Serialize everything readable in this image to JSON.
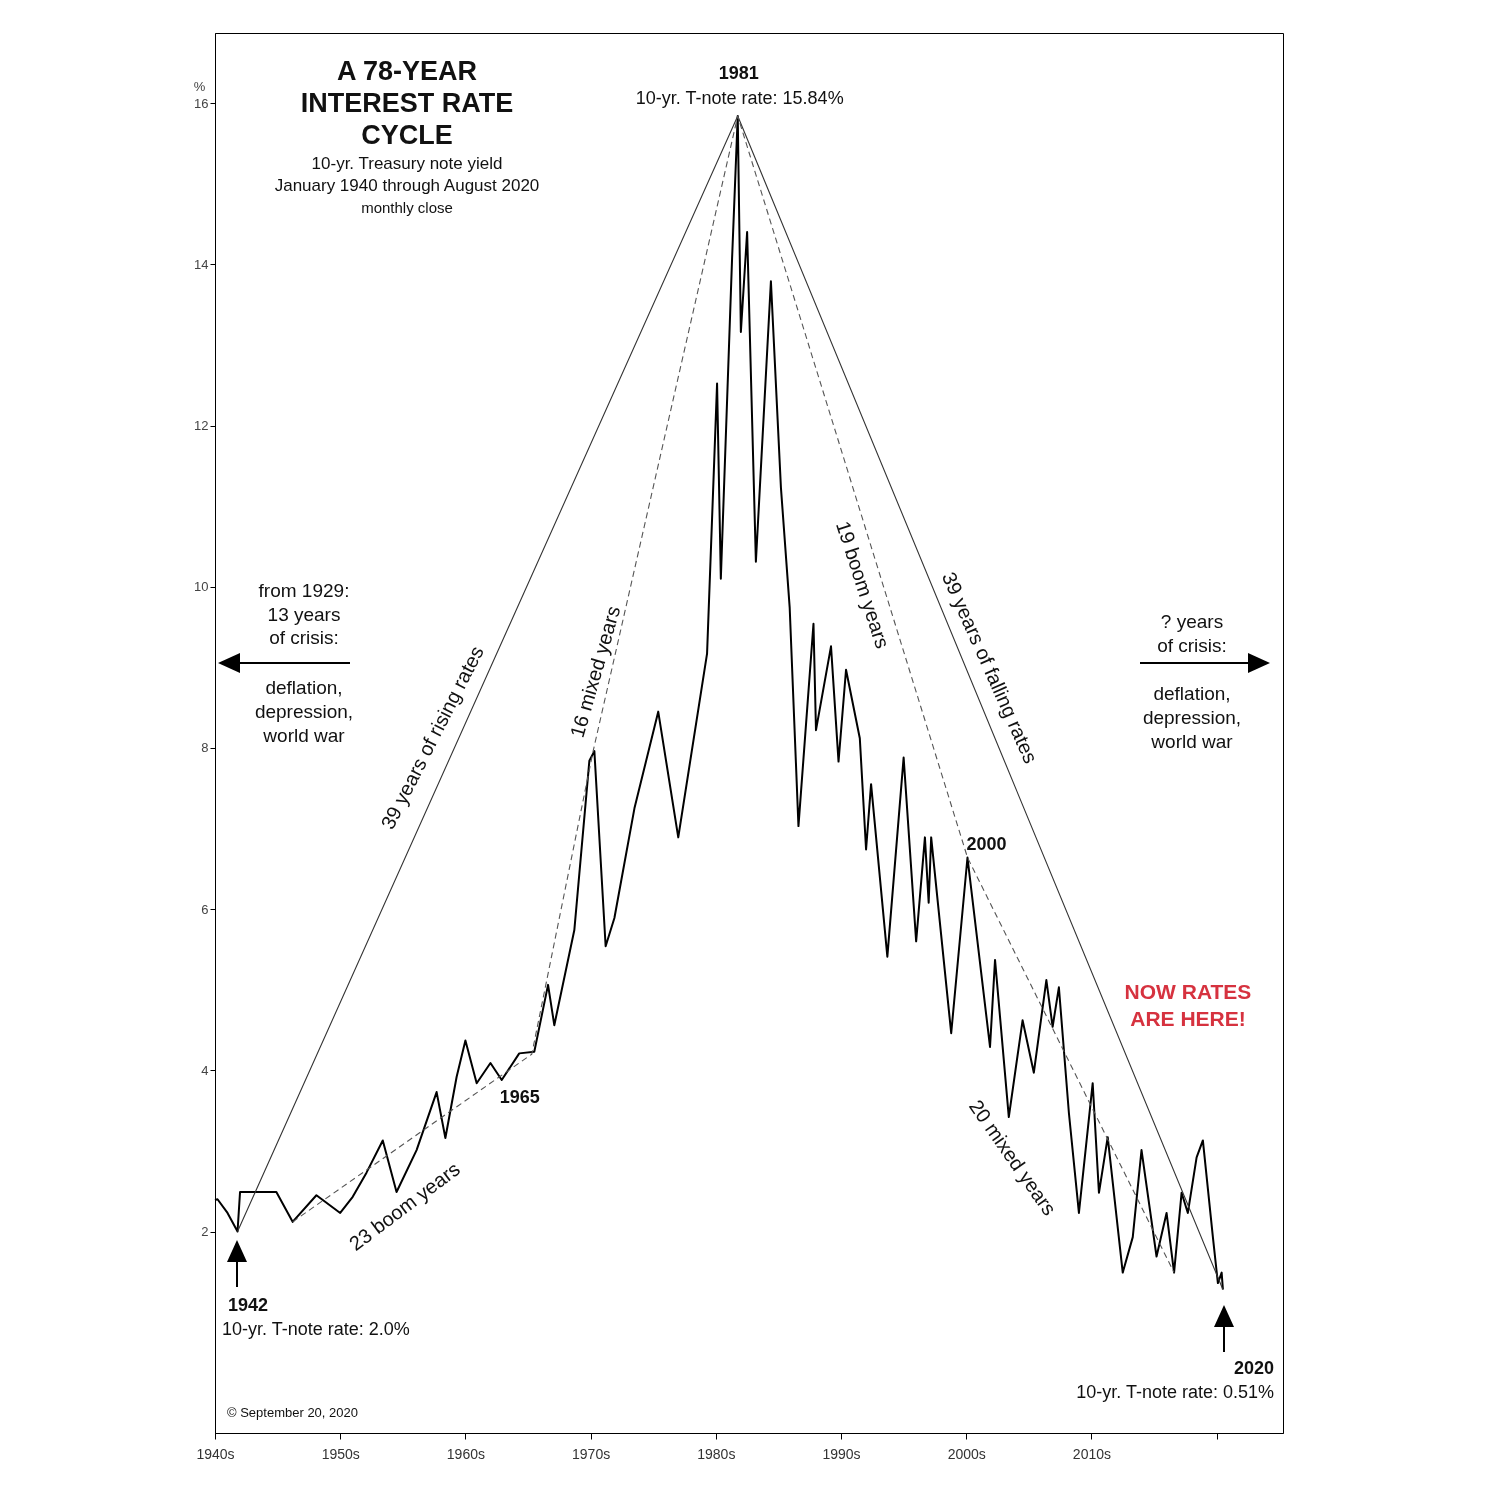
{
  "chart_data": {
    "type": "line",
    "title": "A 78-YEAR INTEREST RATE CYCLE",
    "subtitle": "10-yr. Treasury note yield",
    "ylabel": "%",
    "xlim": [
      1940,
      2025.3
    ],
    "ylim": [
      -0.5,
      16.87
    ],
    "xticks": [
      {
        "value": 1940,
        "label": "1940s"
      },
      {
        "value": 1950,
        "label": "1950s"
      },
      {
        "value": 1960,
        "label": "1960s"
      },
      {
        "value": 1970,
        "label": "1970s"
      },
      {
        "value": 1980,
        "label": "1980s"
      },
      {
        "value": 1990,
        "label": "1990s"
      },
      {
        "value": 2000,
        "label": "2000s"
      },
      {
        "value": 2010,
        "label": "2010s"
      },
      {
        "value": 2020,
        "label": null
      }
    ],
    "yticks": [
      2,
      4,
      6,
      8,
      10,
      12,
      14,
      16
    ],
    "grid": false,
    "series": [
      {
        "color": "#000000",
        "x": [
          1940.0,
          1940.2,
          1941.0,
          1941.8,
          1942.0,
          1944.9,
          1946.2,
          1948.1,
          1950.0,
          1951.0,
          1952.1,
          1953.4,
          1954.5,
          1956.1,
          1957.7,
          1958.4,
          1959.3,
          1960.0,
          1960.9,
          1962.0,
          1962.9,
          1964.3,
          1965.5,
          1966.6,
          1967.1,
          1968.7,
          1969.9,
          1970.3,
          1971.2,
          1971.9,
          1973.5,
          1975.4,
          1977.0,
          1979.3,
          1980.1,
          1980.4,
          1981.3,
          1981.75,
          1982.0,
          1982.5,
          1983.2,
          1984.4,
          1985.2,
          1985.9,
          1986.6,
          1987.8,
          1988.0,
          1989.2,
          1989.8,
          1990.4,
          1991.5,
          1992.0,
          1992.4,
          1993.7,
          1995.0,
          1996.0,
          1996.7,
          1997.0,
          1997.2,
          1998.8,
          2000.1,
          2001.9,
          2002.3,
          2003.4,
          2004.5,
          2005.4,
          2006.4,
          2006.9,
          2007.4,
          2008.2,
          2009.0,
          2010.1,
          2010.6,
          2011.3,
          2012.5,
          2013.3,
          2014.0,
          2015.2,
          2016.0,
          2016.6,
          2017.2,
          2017.7,
          2018.4,
          2018.9,
          2019.7,
          2020.1,
          2020.4,
          2020.5
        ],
        "values": [
          2.39,
          2.4,
          2.23,
          2.0,
          2.49,
          2.49,
          2.12,
          2.45,
          2.23,
          2.43,
          2.73,
          3.13,
          2.49,
          3.01,
          3.73,
          3.16,
          3.92,
          4.37,
          3.84,
          4.09,
          3.88,
          4.21,
          4.23,
          5.06,
          4.56,
          5.74,
          7.84,
          7.96,
          5.54,
          5.89,
          7.25,
          8.45,
          6.89,
          9.17,
          12.52,
          10.1,
          14.08,
          15.84,
          13.16,
          14.4,
          10.31,
          13.79,
          11.23,
          9.74,
          7.03,
          9.54,
          8.22,
          9.26,
          7.83,
          8.97,
          8.12,
          6.74,
          7.55,
          5.41,
          7.88,
          5.6,
          6.89,
          6.08,
          6.89,
          4.46,
          6.64,
          4.29,
          5.37,
          3.42,
          4.62,
          3.97,
          5.12,
          4.54,
          5.03,
          3.47,
          2.23,
          3.84,
          2.48,
          3.17,
          1.49,
          1.93,
          3.01,
          1.69,
          2.23,
          1.49,
          2.48,
          2.23,
          2.92,
          3.13,
          1.93,
          1.36,
          1.49,
          1.28
        ]
      },
      {
        "color": "#333333",
        "line_style": "solid",
        "x": [
          1941.8,
          1981.75,
          2020.5
        ],
        "values": [
          2.0,
          15.84,
          1.28
        ]
      },
      {
        "color": "#555555",
        "line_style": "dashed",
        "x": [
          1946.2,
          1965.3,
          1970.2,
          1981.75,
          2000.1,
          2016.6
        ],
        "values": [
          2.12,
          4.2,
          7.96,
          15.84,
          6.64,
          1.49
        ]
      }
    ],
    "annotations": [
      {
        "text": "1981",
        "x": 1981.75,
        "y": 15.84
      },
      {
        "text": "10-yr. T-note rate: 15.84%",
        "x": 1981.75,
        "y": 15.84
      },
      "1942",
      "10-yr. T-note rate: 2.0%",
      "2020",
      "10-yr. T-note rate: 0.51%",
      {
        "text": "1965",
        "x": 1965.3,
        "y": 4.2
      },
      {
        "text": "2000",
        "x": 2000.1,
        "y": 6.64
      },
      "January 1940 through August 2020",
      "monthly close",
      "39 years of rising rates",
      "16 mixed years",
      "19 boom years",
      "39 years of falling rates",
      "23 boom years",
      "20 mixed years",
      "from 1929:",
      "13 years",
      "of crisis:",
      "deflation,",
      "depression,",
      "world war",
      "? years",
      "of crisis:",
      "deflation,",
      "depression,",
      "world war",
      "NOW RATES",
      "ARE HERE!",
      "© September 20, 2020"
    ]
  }
}
